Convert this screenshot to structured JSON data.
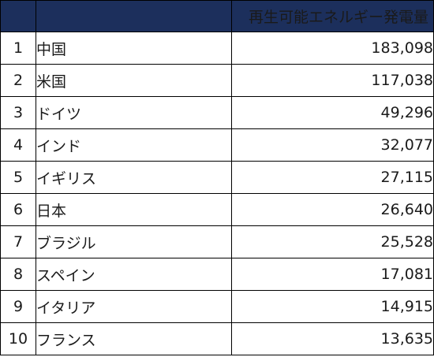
{
  "table": {
    "header": {
      "rank": "",
      "country": "",
      "value": "再生可能エネルギー発電量"
    },
    "rows": [
      {
        "rank": "1",
        "country": "中国",
        "value": "183,098"
      },
      {
        "rank": "2",
        "country": "米国",
        "value": "117,038"
      },
      {
        "rank": "3",
        "country": "ドイツ",
        "value": "49,296"
      },
      {
        "rank": "4",
        "country": "インド",
        "value": "32,077"
      },
      {
        "rank": "5",
        "country": "イギリス",
        "value": "27,115"
      },
      {
        "rank": "6",
        "country": "日本",
        "value": "26,640"
      },
      {
        "rank": "7",
        "country": "ブラジル",
        "value": "25,528"
      },
      {
        "rank": "8",
        "country": "スペイン",
        "value": "17,081"
      },
      {
        "rank": "9",
        "country": "イタリア",
        "value": "14,915"
      },
      {
        "rank": "10",
        "country": "フランス",
        "value": "13,635"
      }
    ]
  },
  "colors": {
    "header_background": "#1c2f5c",
    "header_text": "#ffffff",
    "border": "#000000"
  }
}
